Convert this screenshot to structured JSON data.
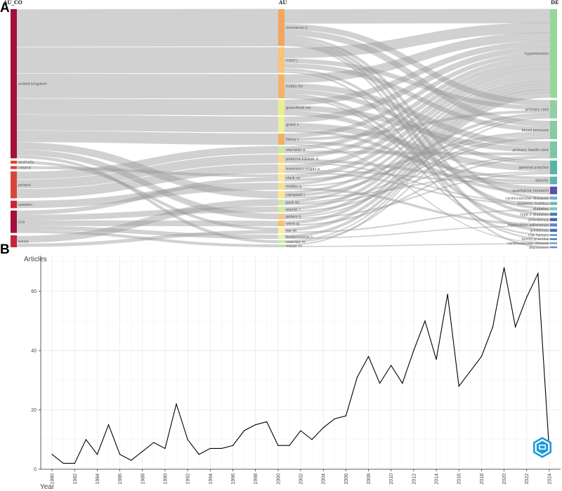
{
  "panels": {
    "a_label": "A",
    "b_label": "B"
  },
  "sankey": {
    "column_headers": [
      "AU_CO",
      "AU",
      "DE"
    ],
    "countries": [
      {
        "name": "united kingdom",
        "weight": 100,
        "color": "#a50f3c"
      },
      {
        "name": "australia",
        "weight": 2,
        "color": "#d8453f"
      },
      {
        "name": "ireland",
        "weight": 2,
        "color": "#d8453f"
      },
      {
        "name": "poland",
        "weight": 18,
        "color": "#d8453f"
      },
      {
        "name": "sweden",
        "weight": 5,
        "color": "#c6263a"
      },
      {
        "name": "usa",
        "weight": 15,
        "color": "#a50f3c"
      },
      {
        "name": "korea",
        "weight": 8,
        "color": "#c6263a"
      }
    ],
    "authors": [
      {
        "name": "mcmanus rj",
        "weight": 26,
        "color": "#f4a55c"
      },
      {
        "name": "mant j",
        "weight": 18,
        "color": "#f9c37a"
      },
      {
        "name": "hobbs fdr",
        "weight": 17,
        "color": "#f6b367"
      },
      {
        "name": "greenfield sm",
        "weight": 11,
        "color": "#eaf08f"
      },
      {
        "name": "grant s",
        "weight": 11,
        "color": "#e8f39a"
      },
      {
        "name": "fahey t",
        "weight": 8,
        "color": "#f7b060"
      },
      {
        "name": "steciwko a",
        "weight": 5,
        "color": "#cce99a"
      },
      {
        "name": "pokorna-kalwak d",
        "weight": 6,
        "color": "#f8d88a"
      },
      {
        "name": "mastalerz-migas a",
        "weight": 6,
        "color": "#fbe39a"
      },
      {
        "name": "clark ce",
        "weight": 5,
        "color": "#fde79a"
      },
      {
        "name": "midlov p",
        "weight": 5,
        "color": "#f2e48d"
      },
      {
        "name": "campbell j",
        "weight": 5,
        "color": "#fde58e"
      },
      {
        "name": "park kh",
        "weight": 4,
        "color": "#cfe8a0"
      },
      {
        "name": "waxler r",
        "weight": 4,
        "color": "#d4eb9f"
      },
      {
        "name": "peters tj",
        "weight": 4,
        "color": "#f9c58a"
      },
      {
        "name": "viera aj",
        "weight": 4,
        "color": "#f8c070"
      },
      {
        "name": "lee sh",
        "weight": 4,
        "color": "#fcef9e"
      },
      {
        "name": "bodenheimer t",
        "weight": 3,
        "color": "#e7f5a0"
      },
      {
        "name": "cranney m",
        "weight": 2,
        "color": "#cfe9a3"
      },
      {
        "name": "moser m",
        "weight": 2,
        "color": "#bfe3a6"
      }
    ],
    "keywords": [
      {
        "name": "hypertension",
        "weight": 58,
        "color": "#98d59c"
      },
      {
        "name": "primary care",
        "weight": 12,
        "color": "#91d1a1"
      },
      {
        "name": "blood pressure",
        "weight": 12,
        "color": "#86cba1"
      },
      {
        "name": "primary health care",
        "weight": 11,
        "color": "#7cc6a3"
      },
      {
        "name": "general practice",
        "weight": 9,
        "color": "#59b2aa"
      },
      {
        "name": "obesity",
        "weight": 5,
        "color": "#5bb5aa"
      },
      {
        "name": "qualitative research",
        "weight": 5,
        "color": "#5b4fa6"
      },
      {
        "name": "cardiovascular diseases",
        "weight": 2,
        "color": "#6aaed6"
      },
      {
        "name": "diabetes mellitus",
        "weight": 2,
        "color": "#6ab9b0"
      },
      {
        "name": "diabetes",
        "weight": 2,
        "color": "#7ccab0"
      },
      {
        "name": "type 2 diabetes",
        "weight": 2,
        "color": "#4b7bbd"
      },
      {
        "name": "prevalence",
        "weight": 2,
        "color": "#3b66b0"
      },
      {
        "name": "medication adherence",
        "weight": 2,
        "color": "#5e84c2"
      },
      {
        "name": "guidelines",
        "weight": 2,
        "color": "#4b6cb4"
      },
      {
        "name": "risk factors",
        "weight": 1,
        "color": "#5b91c5"
      },
      {
        "name": "family practice",
        "weight": 1,
        "color": "#4a7ab8"
      },
      {
        "name": "cardiovascular disease",
        "weight": 1,
        "color": "#6b9ecb"
      },
      {
        "name": "depression",
        "weight": 1,
        "color": "#6b8bc4"
      }
    ]
  },
  "chart_data": {
    "type": "line",
    "ylabel": "Articles",
    "xlabel": "Year",
    "xlim": [
      1979,
      2025
    ],
    "ylim": [
      0,
      72
    ],
    "yticks": [
      0,
      20,
      40,
      60
    ],
    "xticks": [
      1980,
      1982,
      1984,
      1986,
      1988,
      1990,
      1992,
      1994,
      1996,
      1998,
      2000,
      2002,
      2004,
      2006,
      2008,
      2010,
      2012,
      2014,
      2016,
      2018,
      2020,
      2022,
      2024
    ],
    "grid": true,
    "series": [
      {
        "x": [
          1980,
          1981,
          1982,
          1983,
          1984,
          1985,
          1986,
          1987,
          1988,
          1989,
          1990,
          1991,
          1992,
          1993,
          1994,
          1995,
          1996,
          1997,
          1998,
          1999,
          2000,
          2001,
          2002,
          2003,
          2004,
          2005,
          2006,
          2007,
          2008,
          2009,
          2010,
          2011,
          2012,
          2013,
          2014,
          2015,
          2016,
          2017,
          2018,
          2019,
          2020,
          2021,
          2022,
          2023,
          2024
        ],
        "values": [
          5,
          2,
          2,
          10,
          5,
          15,
          5,
          3,
          6,
          9,
          7,
          22,
          10,
          5,
          7,
          7,
          8,
          13,
          15,
          16,
          8,
          8,
          13,
          10,
          14,
          17,
          18,
          31,
          38,
          29,
          35,
          29,
          40,
          50,
          37,
          59,
          28,
          33,
          38,
          48,
          68,
          48,
          58,
          66,
          6
        ]
      }
    ]
  }
}
